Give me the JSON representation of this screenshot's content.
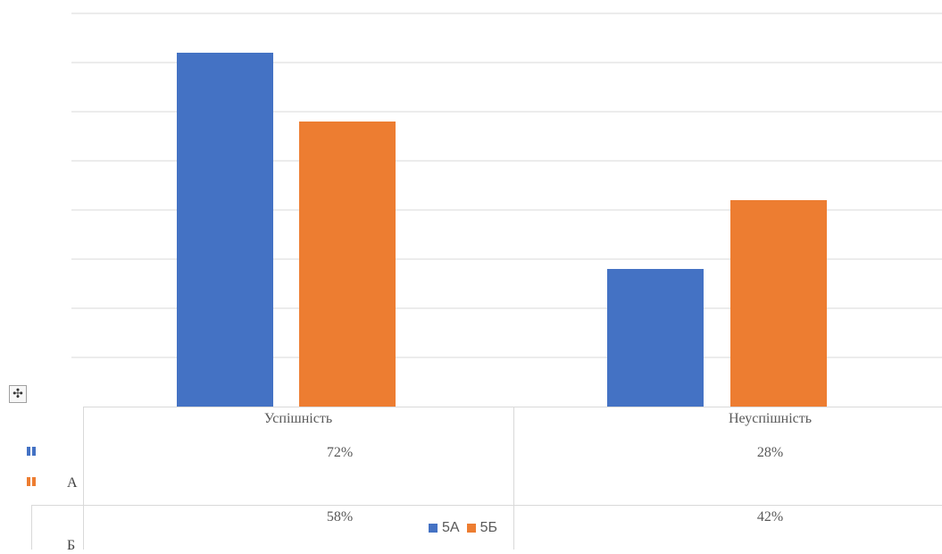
{
  "chart_data": {
    "type": "bar",
    "categories": [
      "Успішність",
      "Неуспішність"
    ],
    "series": [
      {
        "name": "5А",
        "values": [
          72,
          28
        ],
        "labels": [
          "72%",
          "28%"
        ],
        "color": "#4472C4"
      },
      {
        "name": "5Б",
        "values": [
          58,
          42
        ],
        "labels": [
          "58%",
          "42%"
        ],
        "color": "#ED7D31"
      }
    ],
    "row_labels": [
      "А",
      "Б"
    ],
    "ylim": [
      0,
      80
    ],
    "grid": true,
    "legend": "bottom",
    "data_table": true
  },
  "colors": {
    "gridline": "#d9d9d9",
    "text": "#595959"
  },
  "icons": {
    "move_handle": "move-arrows-icon"
  },
  "move_handle_glyph": "✣"
}
